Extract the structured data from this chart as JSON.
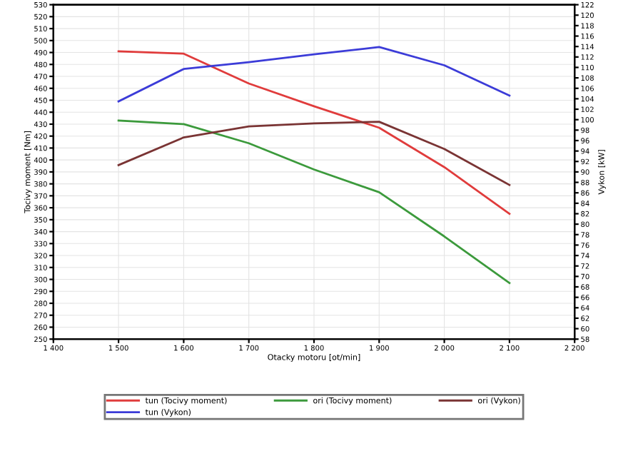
{
  "chart_data": {
    "type": "line",
    "xlabel": "Otacky motoru [ot/min]",
    "ylabel": "Tocivy moment [Nm]",
    "y2label": "Vykon [kW]",
    "x": [
      1500,
      1600,
      1700,
      1800,
      1900,
      2000,
      2100
    ],
    "series": [
      {
        "name": "tun (Tocivy moment)",
        "color": "#e03c3c",
        "values": [
          491,
          489,
          464,
          445,
          427,
          394,
          355
        ]
      },
      {
        "name": "tun (Vykon)",
        "color": "#3c3cd8",
        "axis": "y2",
        "values": [
          103.5,
          109.7,
          111,
          112.5,
          113.9,
          110.4,
          104.6
        ]
      },
      {
        "name": "ori (Tocivy moment)",
        "color": "#3c9a3c",
        "values": [
          433,
          430,
          414,
          392,
          373,
          336,
          297
        ]
      },
      {
        "name": "ori (Vykon)",
        "color": "#7a3434",
        "axis": "y2",
        "values": [
          91.3,
          96.6,
          98.7,
          99.3,
          99.6,
          94.4,
          87.5
        ]
      }
    ],
    "xlim": [
      1400,
      2200
    ],
    "xticks": [
      {
        "value": 1400,
        "label": "1 400"
      },
      {
        "value": 1500,
        "label": "1 500"
      },
      {
        "value": 1600,
        "label": "1 600"
      },
      {
        "value": 1700,
        "label": "1 700"
      },
      {
        "value": 1800,
        "label": "1 800"
      },
      {
        "value": 1900,
        "label": "1 900"
      },
      {
        "value": 2000,
        "label": "2 000"
      },
      {
        "value": 2100,
        "label": "2 100"
      },
      {
        "value": 2200,
        "label": "2 200"
      }
    ],
    "ylim": [
      250,
      530
    ],
    "yticks": [
      250,
      260,
      270,
      280,
      290,
      300,
      310,
      320,
      330,
      340,
      350,
      360,
      370,
      380,
      390,
      400,
      410,
      420,
      430,
      440,
      450,
      460,
      470,
      480,
      490,
      500,
      510,
      520,
      530
    ],
    "y2lim": [
      58,
      122
    ],
    "y2ticks": [
      58,
      60,
      62,
      64,
      66,
      68,
      70,
      72,
      74,
      76,
      78,
      80,
      82,
      84,
      86,
      88,
      90,
      92,
      94,
      96,
      98,
      100,
      102,
      104,
      106,
      108,
      110,
      112,
      114,
      116,
      118,
      120,
      122
    ],
    "grid": true,
    "legend": "bottom",
    "marker": "none",
    "line_style": "solid"
  }
}
